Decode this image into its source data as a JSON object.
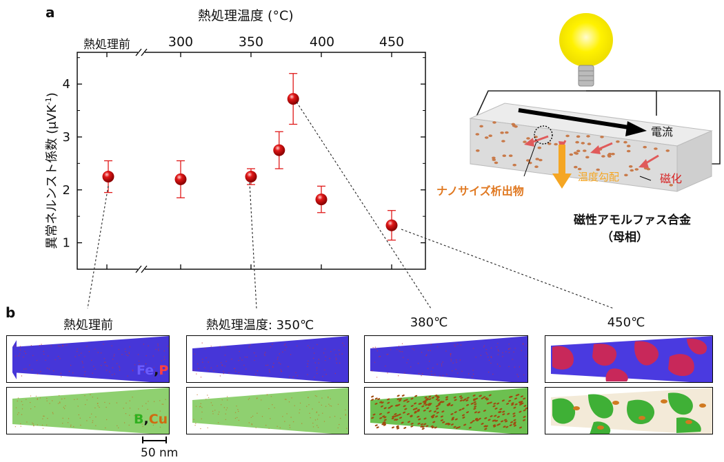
{
  "panel_a": {
    "letter": "a",
    "top_axis_title": "熱処理温度 (°C)",
    "top_ticks": [
      "熱処理前",
      "300",
      "350",
      "400",
      "450"
    ],
    "ylabel": "異常ネルンスト係数 (μVK",
    "ylabel_sup": "-1",
    "ylabel_close": ")",
    "y_ticks": [
      "1",
      "2",
      "3",
      "4"
    ]
  },
  "chart_data": {
    "type": "scatter",
    "xlabel": "熱処理温度 (°C)",
    "ylabel": "異常ネルンスト係数 (μVK-1)",
    "xlim": [
      268,
      475
    ],
    "ylim": [
      0.5,
      4.6
    ],
    "axis_break": "between 熱処理前 and 300",
    "grid": false,
    "categories": [
      "熱処理前",
      "300",
      "350",
      "370",
      "380",
      "400",
      "450"
    ],
    "points": [
      {
        "label": "熱処理前",
        "x": null,
        "y": 2.25,
        "err_low": 0.3,
        "err_high": 0.3
      },
      {
        "label": "300",
        "x": 300,
        "y": 2.2,
        "err_low": 0.35,
        "err_high": 0.35
      },
      {
        "label": "350",
        "x": 350,
        "y": 2.25,
        "err_low": 0.15,
        "err_high": 0.15
      },
      {
        "label": "370",
        "x": 370,
        "y": 2.75,
        "err_low": 0.35,
        "err_high": 0.35
      },
      {
        "label": "380",
        "x": 380,
        "y": 3.72,
        "err_low": 0.48,
        "err_high": 0.48
      },
      {
        "label": "400",
        "x": 400,
        "y": 1.82,
        "err_low": 0.25,
        "err_high": 0.25
      },
      {
        "label": "450",
        "x": 450,
        "y": 1.33,
        "err_low": 0.28,
        "err_high": 0.28
      }
    ],
    "marker_color": "#e01818",
    "errorbar_color": "#e01818"
  },
  "schematic": {
    "current_label": "電流",
    "temp_gradient_label": "温度勾配",
    "magnetization_label": "磁化",
    "precipitate_label": "ナノサイズ析出物",
    "matrix_label_line1": "磁性アモルファス合金",
    "matrix_label_line2": "（母相）",
    "colors": {
      "bulb": "#ffef00",
      "precipitate": "#c87a4a",
      "arrow_orange": "#f5a623",
      "magnet_arrow": "#e05a5a",
      "label_orange": "#e07820",
      "label_red": "#d62020"
    }
  },
  "panel_b": {
    "letter": "b",
    "captions": [
      "熱処理前",
      "熱処理温度: 350℃",
      "380℃",
      "450℃"
    ],
    "legend_top": {
      "a": "Fe",
      "comma": ",",
      "b": "P"
    },
    "legend_bottom": {
      "a": "B",
      "comma": ",",
      "b": "Cu"
    },
    "scale_bar": "50 nm",
    "colors": {
      "fe": "#4a3ae0",
      "p": "#e02020",
      "b": "#40b030",
      "cu": "#d06a10"
    }
  }
}
